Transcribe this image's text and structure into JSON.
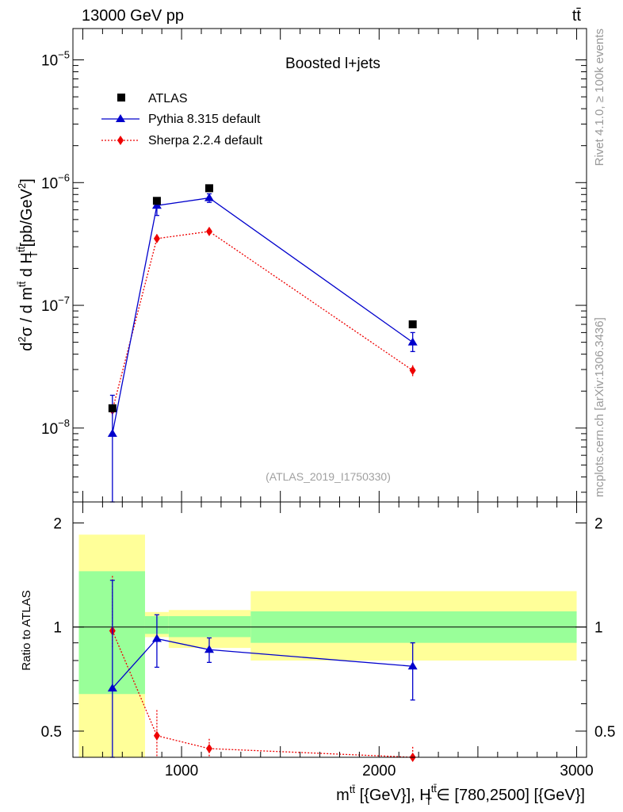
{
  "header": {
    "energy_label": "13000 GeV pp",
    "process_label": "tt̄"
  },
  "side_labels": {
    "rivet": "Rivet 4.1.0, ≥ 100k events",
    "site": "mcplots.cern.ch [arXiv:1306.3436]"
  },
  "colors": {
    "data": "#000000",
    "pythia": "#0000cc",
    "sherpa": "#ee0000",
    "band_inner": "#99ff99",
    "band_outer": "#ffff99"
  },
  "chart_data": [
    {
      "type": "scatter",
      "title": "Boosted l+jets",
      "analysis_label": "(ATLAS_2019_I1750330)",
      "ylabel": "d²σ / d m^tt̄ d H_T^tt̄ [pb/GeV²]",
      "yscale": "log",
      "ylim": [
        2.5e-09,
        1.8e-05
      ],
      "xlim": [
        450,
        3050
      ],
      "y_ticks": [
        {
          "value": 1e-08,
          "base": "10",
          "exp": "−8"
        },
        {
          "value": 1e-07,
          "base": "10",
          "exp": "−7"
        },
        {
          "value": 1e-06,
          "base": "10",
          "exp": "−6"
        },
        {
          "value": 1e-05,
          "base": "10",
          "exp": "−5"
        }
      ],
      "legend": [
        "ATLAS",
        "Pythia 8.315 default",
        "Sherpa 2.2.4 default"
      ],
      "series": [
        {
          "name": "ATLAS",
          "marker": "square",
          "x": [
            650,
            875,
            1140,
            2170
          ],
          "y": [
            1.45e-08,
            7.1e-07,
            9e-07,
            7e-08
          ]
        },
        {
          "name": "Pythia 8.315 default",
          "marker": "triangle",
          "line": "solid",
          "x": [
            650,
            875,
            1140,
            2170
          ],
          "y": [
            9e-09,
            6.5e-07,
            7.5e-07,
            5e-08
          ],
          "err_low": [
            6.5e-09,
            1.1e-07,
            6e-08,
            8e-09
          ],
          "err_high": [
            9.5e-09,
            9e-08,
            6e-08,
            1e-08
          ]
        },
        {
          "name": "Sherpa 2.2.4 default",
          "marker": "diamond",
          "line": "dotted",
          "x": [
            650,
            875,
            1140,
            2170
          ],
          "y": [
            1.4e-08,
            3.5e-07,
            4e-07,
            2.95e-08
          ],
          "err_low": [
            1.5e-09,
            3e-08,
            2.5e-08,
            3e-09
          ],
          "err_high": [
            1.5e-09,
            3e-08,
            2.5e-08,
            3e-09
          ]
        }
      ]
    },
    {
      "type": "scatter",
      "title": "",
      "ylabel": "Ratio to ATLAS",
      "xlabel": "m^tt̄ [{GeV}], H_T^tt̄ ∈ [780,2500] [{GeV}]",
      "yscale": "log",
      "ylim": [
        0.42,
        2.3
      ],
      "xlim": [
        450,
        3050
      ],
      "x_ticks": [
        {
          "value": 1000,
          "label": "1000"
        },
        {
          "value": 2000,
          "label": "2000"
        },
        {
          "value": 3000,
          "label": "3000"
        }
      ],
      "y_ticks": [
        {
          "value": 0.5,
          "label": "0.5"
        },
        {
          "value": 1,
          "label": "1"
        },
        {
          "value": 2,
          "label": "2"
        }
      ],
      "bins": [
        {
          "lo": 480,
          "hi": 815,
          "inner": [
            0.64,
            1.45
          ],
          "outer": [
            0.33,
            1.85
          ]
        },
        {
          "lo": 815,
          "hi": 935,
          "inner": [
            0.955,
            1.075
          ],
          "outer": [
            0.935,
            1.105
          ]
        },
        {
          "lo": 935,
          "hi": 1350,
          "inner": [
            0.935,
            1.075
          ],
          "outer": [
            0.87,
            1.12
          ]
        },
        {
          "lo": 1350,
          "hi": 3000,
          "inner": [
            0.9,
            1.11
          ],
          "outer": [
            0.8,
            1.27
          ]
        }
      ],
      "series": [
        {
          "name": "Pythia 8.315 default",
          "x": [
            650,
            875,
            1140,
            2170
          ],
          "y": [
            0.665,
            0.925,
            0.86,
            0.77
          ],
          "err_low": [
            0.33,
            0.16,
            0.07,
            0.155
          ],
          "err_high": [
            0.7,
            0.16,
            0.07,
            0.13
          ]
        },
        {
          "name": "Sherpa 2.2.4 default",
          "x": [
            650,
            875,
            1140,
            2170
          ],
          "y": [
            0.975,
            0.485,
            0.445,
            0.42
          ],
          "err_low": [
            0.1,
            0.1,
            0.03,
            0.03
          ],
          "err_high": [
            0.43,
            0.09,
            0.03,
            0.03
          ]
        }
      ]
    }
  ]
}
